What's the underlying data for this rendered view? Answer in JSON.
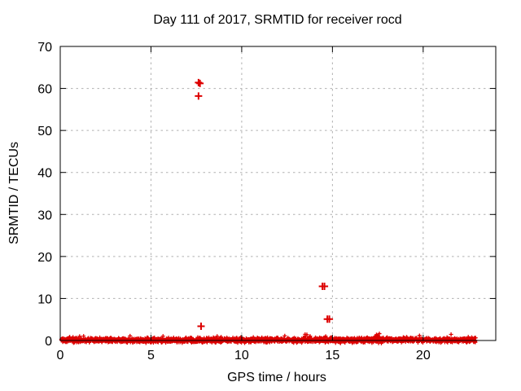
{
  "chart_data": {
    "type": "scatter",
    "title": "Day 111 of 2017, SRMTID for receiver rocd",
    "xlabel": "GPS time / hours",
    "ylabel": "SRMTID / TECUs",
    "xlim": [
      0,
      24
    ],
    "ylim": [
      0,
      70
    ],
    "xticks": [
      0,
      5,
      10,
      15,
      20
    ],
    "yticks": [
      0,
      10,
      20,
      30,
      40,
      50,
      60,
      70
    ],
    "grid": true,
    "legend": "none",
    "marker": "plus",
    "colors": {
      "series": "#dd0000",
      "grid": "#b0b0b0",
      "axis": "#000000",
      "background": "#ffffff"
    },
    "outlier_points": [
      {
        "x": 7.62,
        "y": 61.4
      },
      {
        "x": 7.7,
        "y": 61.2
      },
      {
        "x": 7.62,
        "y": 58.2
      },
      {
        "x": 7.76,
        "y": 3.4
      },
      {
        "x": 14.45,
        "y": 12.9
      },
      {
        "x": 14.56,
        "y": 12.9
      },
      {
        "x": 14.72,
        "y": 5.1
      },
      {
        "x": 14.83,
        "y": 5.1
      }
    ],
    "baseline_band": {
      "description": "dense band of plus markers hugging SRMTID = 0 for the whole day",
      "x_start": 0.05,
      "x_end": 22.9,
      "y_center": 0.1,
      "y_spread": 0.55,
      "point_count": 1900,
      "seed": 1711,
      "bumps": [
        {
          "x": 17.45,
          "y_max": 1.9,
          "count": 10
        },
        {
          "x": 13.6,
          "y_max": 1.5,
          "count": 5
        }
      ]
    }
  }
}
